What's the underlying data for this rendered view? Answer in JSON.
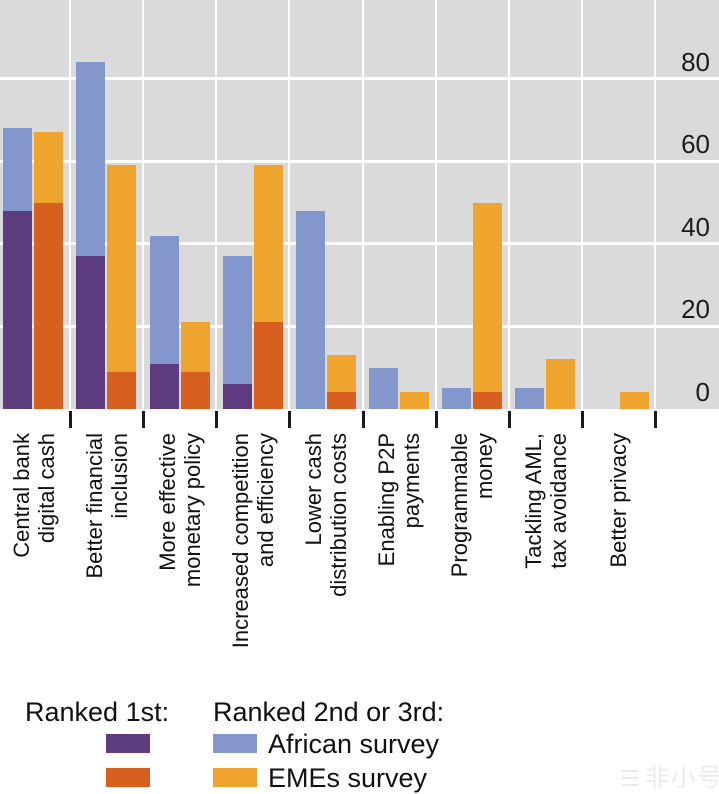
{
  "chart_data": {
    "type": "bar",
    "stacked": true,
    "orientation": "vertical",
    "title": "",
    "categories": [
      "Central bank digital cash",
      "Better financial inclusion",
      "More effective monetary policy",
      "Increased competition and efficiency",
      "Lower cash distribution costs",
      "Enabling P2P payments",
      "Programmable money",
      "Tackling AML, tax avoidance",
      "Better privacy"
    ],
    "category_lines": [
      [
        "Central bank",
        "digital cash"
      ],
      [
        "Better financial",
        "inclusion"
      ],
      [
        "More effective",
        "monetary policy"
      ],
      [
        "Increased competition",
        "and efficiency"
      ],
      [
        "Lower cash",
        "distribution costs"
      ],
      [
        "Enabling P2P",
        "payments"
      ],
      [
        "Programmable",
        "money"
      ],
      [
        "Tackling AML,",
        "tax avoidance"
      ],
      [
        "Better privacy"
      ]
    ],
    "series": [
      {
        "name": "African survey – ranked 1st",
        "group": "african",
        "rank": "1st",
        "color": "#5d3c80",
        "values": [
          48,
          37,
          11,
          6,
          0,
          0,
          0,
          0,
          0
        ]
      },
      {
        "name": "African survey – ranked 2nd or 3rd",
        "group": "african",
        "rank": "2nd-3rd",
        "color": "#8497cd",
        "values": [
          20,
          47,
          31,
          31,
          48,
          10,
          5,
          5,
          0
        ]
      },
      {
        "name": "EMEs survey – ranked 1st",
        "group": "emes",
        "rank": "1st",
        "color": "#d7601e",
        "values": [
          50,
          9,
          9,
          21,
          4,
          0,
          4,
          0,
          0
        ]
      },
      {
        "name": "EMEs survey – ranked 2nd or 3rd",
        "group": "emes",
        "rank": "2nd-3rd",
        "color": "#efa42d",
        "values": [
          17,
          50,
          12,
          38,
          9,
          4,
          46,
          12,
          4
        ]
      }
    ],
    "ylim": [
      0,
      80
    ],
    "yticks": [
      0,
      20,
      40,
      60,
      80
    ],
    "yaxis_side": "right",
    "grid": true,
    "plot_background": "#dadada",
    "gridline_color": "#ffffff",
    "legend_position": "bottom"
  },
  "legend": {
    "ranked1_header": "Ranked 1st:",
    "ranked23_header": "Ranked 2nd or 3rd:",
    "african_label": "African survey",
    "emes_label": "EMEs survey"
  },
  "colors": {
    "african_ranked1": "#5d3c80",
    "african_ranked23": "#8497cd",
    "emes_ranked1": "#d7601e",
    "emes_ranked23": "#efa42d"
  },
  "watermark": {
    "text": "非小号"
  }
}
